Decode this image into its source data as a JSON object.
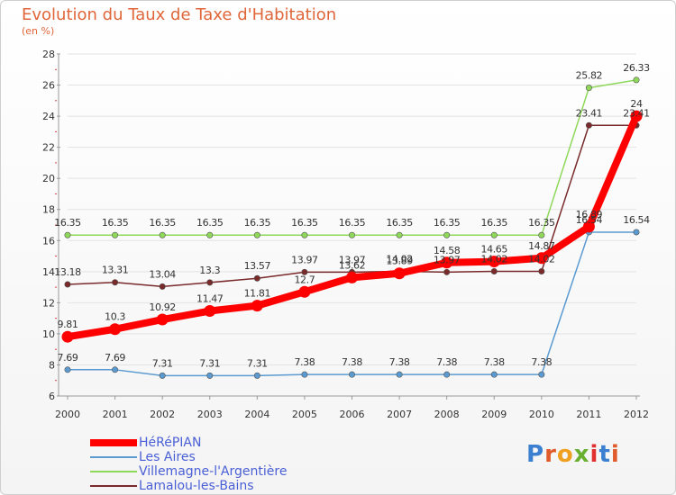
{
  "header": {
    "title": "Evolution du Taux de Taxe d'Habitation",
    "subtitle": "(en %)"
  },
  "logo": {
    "text": "Proxiti",
    "colors": [
      "#3a7fd0",
      "#e05a2a",
      "#f0a020",
      "#6ab030",
      "#e03030",
      "#3a7fd0",
      "#e05a2a"
    ]
  },
  "chart_data": {
    "type": "line",
    "title": "Evolution du Taux de Taxe d'Habitation",
    "subtitle": "(en %)",
    "x": [
      "2000",
      "2001",
      "2002",
      "2003",
      "2004",
      "2005",
      "2006",
      "2007",
      "2008",
      "2009",
      "2010",
      "2011",
      "2012"
    ],
    "ylim": [
      6,
      28
    ],
    "yticks": [
      6,
      8,
      10,
      12,
      14,
      16,
      18,
      20,
      22,
      24,
      26,
      28
    ],
    "grid": "horizontal",
    "legend_position": "bottom-left",
    "series": [
      {
        "name": "HéRéPIAN",
        "color": "#ff0000",
        "values": [
          9.81,
          10.3,
          10.92,
          11.47,
          11.81,
          12.7,
          13.62,
          13.89,
          14.58,
          14.65,
          14.87,
          16.89,
          24
        ],
        "labels": [
          "9.81",
          "10.3",
          "10.92",
          "11.47",
          "11.81",
          "12.7",
          "13.62",
          "13.89",
          "14.58",
          "14.65",
          "14.87",
          "16.89",
          "24"
        ]
      },
      {
        "name": "Les Aires",
        "color": "#5a9ad0",
        "values": [
          7.69,
          7.69,
          7.31,
          7.31,
          7.31,
          7.38,
          7.38,
          7.38,
          7.38,
          7.38,
          7.38,
          16.54,
          16.54
        ],
        "labels": [
          "7.69",
          "7.69",
          "7.31",
          "7.31",
          "7.31",
          "7.38",
          "7.38",
          "7.38",
          "7.38",
          "7.38",
          "7.38",
          "16.54",
          "16.54"
        ]
      },
      {
        "name": "Villemagne-l'Argentière",
        "color": "#8fd85a",
        "values": [
          16.35,
          16.35,
          16.35,
          16.35,
          16.35,
          16.35,
          16.35,
          16.35,
          16.35,
          16.35,
          16.35,
          25.82,
          26.33
        ],
        "labels": [
          "16.35",
          "16.35",
          "16.35",
          "16.35",
          "16.35",
          "16.35",
          "16.35",
          "16.35",
          "16.35",
          "16.35",
          "16.35",
          "25.82",
          "26.33"
        ]
      },
      {
        "name": "Lamalou-les-Bains",
        "color": "#7a2a2a",
        "values": [
          13.18,
          13.31,
          13.04,
          13.3,
          13.57,
          13.97,
          13.97,
          14.02,
          13.97,
          14.02,
          14.02,
          23.41,
          23.41
        ],
        "labels": [
          "13.18",
          "13.31",
          "13.04",
          "13.3",
          "13.57",
          "13.97",
          "13.97",
          "14.02",
          "13.97",
          "14.02",
          "14.02",
          "23.41",
          "23.41"
        ]
      }
    ]
  }
}
